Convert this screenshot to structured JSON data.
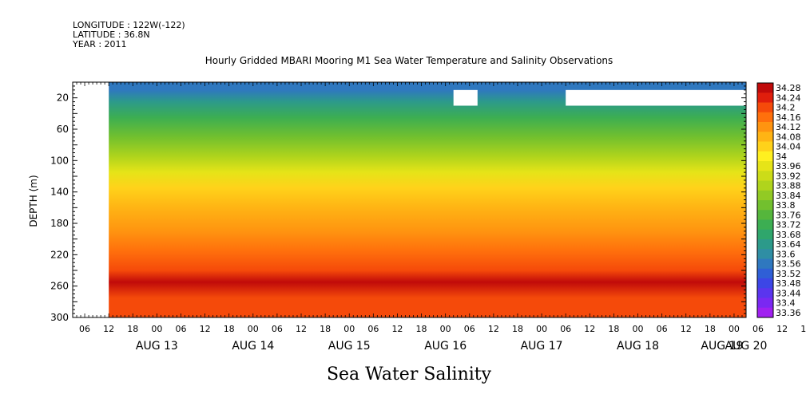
{
  "meta": {
    "longitude": "LONGITUDE : 122W(-122)",
    "latitude": "LATITUDE : 36.8N",
    "year": "YEAR : 2011"
  },
  "chart_data": {
    "type": "heatmap",
    "title": "Hourly Gridded MBARI Mooring M1 Sea Water Temperature and Salinity Observations",
    "ylabel": "DEPTH (m)",
    "xlabel": "",
    "bottom_title": "Sea Water Salinity",
    "y_axis": {
      "range": [
        300,
        0
      ],
      "inverted": true,
      "ticks": [
        20,
        60,
        100,
        140,
        180,
        220,
        260,
        300
      ]
    },
    "x_axis": {
      "range_hours": [
        "AUG 13 03:00",
        "AUG 20 03:00"
      ],
      "hour_ticks": [
        "06",
        "12",
        "18",
        "00",
        "06",
        "12",
        "18",
        "00",
        "06",
        "12",
        "18",
        "00",
        "06",
        "12",
        "18",
        "00",
        "06",
        "12",
        "18",
        "00",
        "06",
        "12",
        "18",
        "00",
        "06",
        "12",
        "18",
        "00",
        "06",
        "12",
        "18",
        "00"
      ],
      "day_labels": [
        "AUG 13",
        "AUG 14",
        "AUG 15",
        "AUG 16",
        "AUG 17",
        "AUG 18",
        "AUG 19",
        "AUG 20"
      ]
    },
    "colorbar": {
      "labels": [
        "34.28",
        "34.24",
        "34.2",
        "34.16",
        "34.12",
        "34.08",
        "34.04",
        "34",
        "33.96",
        "33.92",
        "33.88",
        "33.84",
        "33.8",
        "33.76",
        "33.72",
        "33.68",
        "33.64",
        "33.6",
        "33.56",
        "33.52",
        "33.48",
        "33.44",
        "33.4",
        "33.36"
      ],
      "min": 33.36,
      "max": 34.28
    },
    "salinity_profile": [
      {
        "depth": 10,
        "value": 33.58
      },
      {
        "depth": 25,
        "value": 33.64
      },
      {
        "depth": 45,
        "value": 33.72
      },
      {
        "depth": 70,
        "value": 33.8
      },
      {
        "depth": 95,
        "value": 33.88
      },
      {
        "depth": 115,
        "value": 33.94
      },
      {
        "depth": 135,
        "value": 34.02
      },
      {
        "depth": 160,
        "value": 34.08
      },
      {
        "depth": 190,
        "value": 34.12
      },
      {
        "depth": 215,
        "value": 34.16
      },
      {
        "depth": 240,
        "value": 34.2
      },
      {
        "depth": 255,
        "value": 34.25
      },
      {
        "depth": 275,
        "value": 34.2
      },
      {
        "depth": 300,
        "value": 34.17
      }
    ],
    "missing_data": [
      {
        "x_start": "AUG 13 03:00",
        "x_end": "AUG 13 12:00",
        "depth_min": 0,
        "depth_max": 300
      },
      {
        "x_start": "AUG 17 02:00",
        "x_end": "AUG 17 08:00",
        "depth_min": 10,
        "depth_max": 30
      },
      {
        "x_start": "AUG 18 06:00",
        "x_end": "AUG 20 03:00",
        "depth_min": 10,
        "depth_max": 30
      }
    ],
    "grid": false,
    "legend": "right colorbar"
  }
}
